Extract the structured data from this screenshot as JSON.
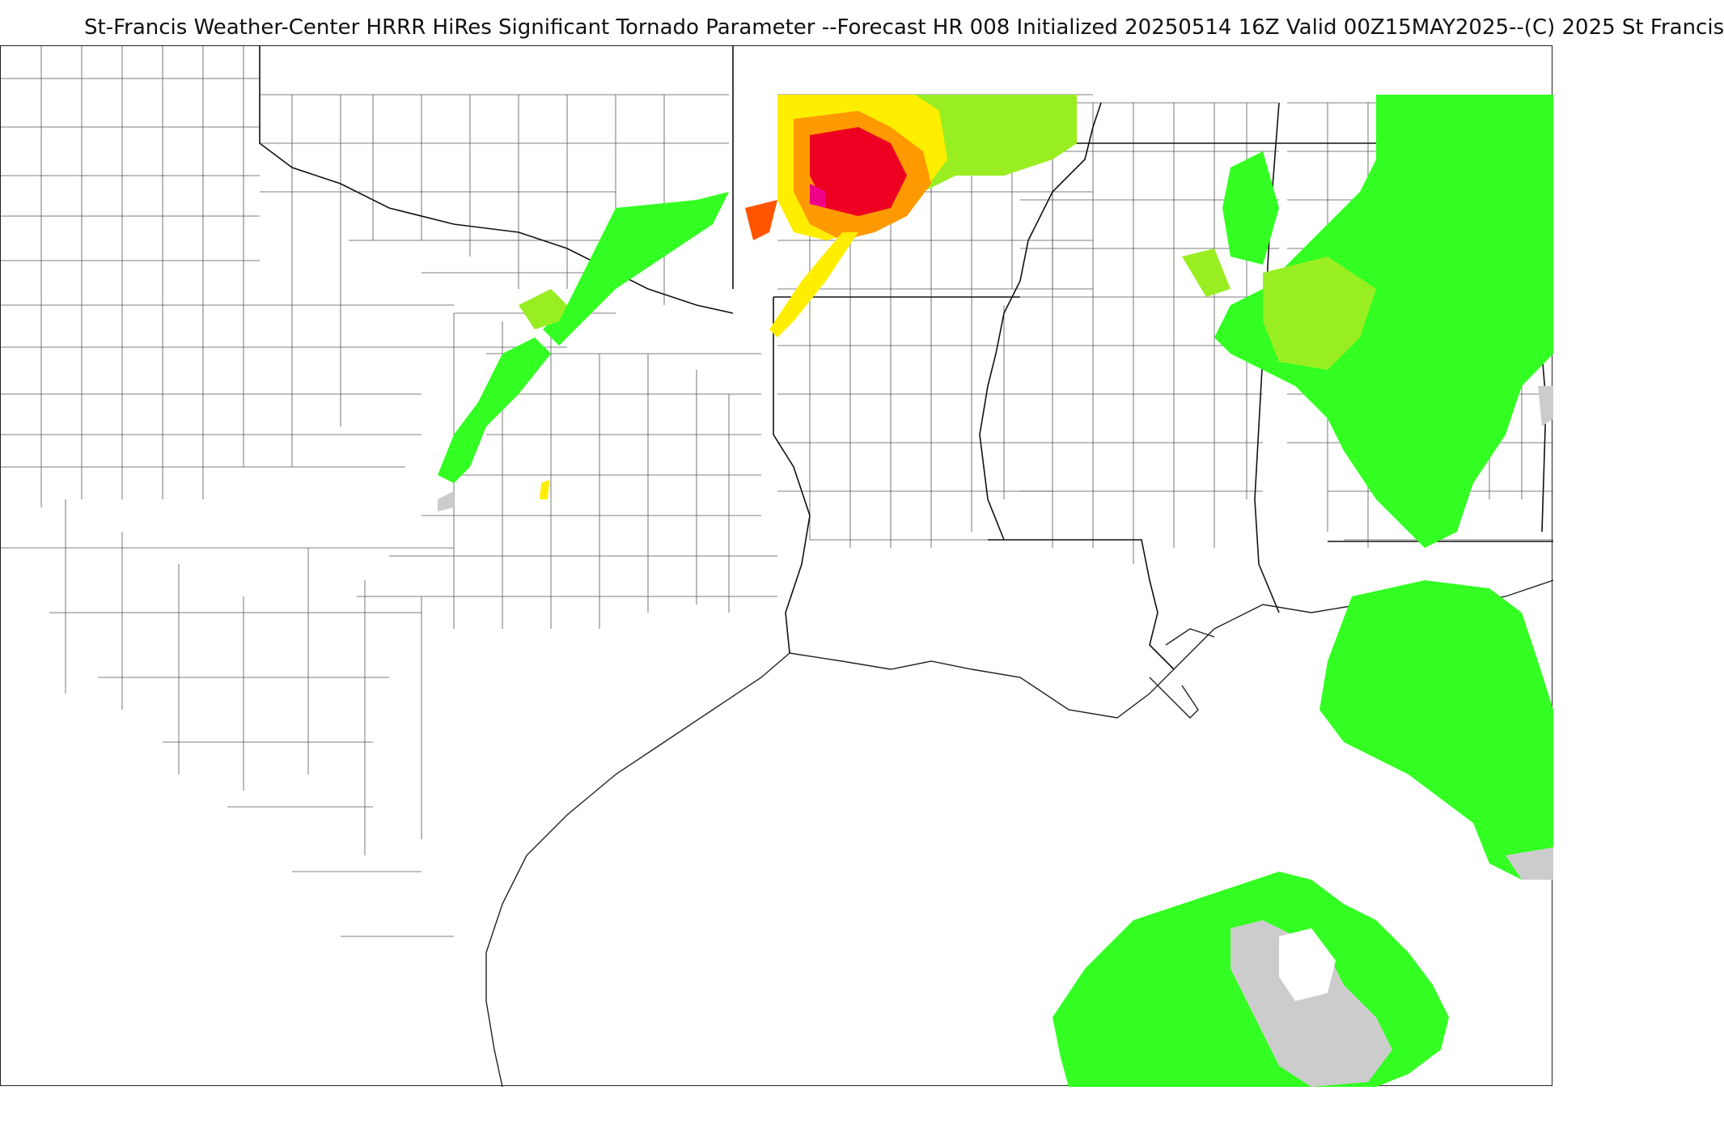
{
  "title": "St-Francis Weather-Center HRRR HiRes Significant Tornado Parameter --Forecast HR 008 Initialized 20250514 16Z Valid 00Z15MAY2025--(C) 2025 St Francis",
  "colors": {
    "background": "#ffffff",
    "county_line": "#444444",
    "state_line": "#111111",
    "green": "#33ff22",
    "light_green": "#99ee22",
    "yellow": "#ffee00",
    "orange": "#ff9900",
    "dark_orange": "#ff5500",
    "red": "#ee0022",
    "magenta": "#ee0088",
    "gray": "#cccccc"
  }
}
